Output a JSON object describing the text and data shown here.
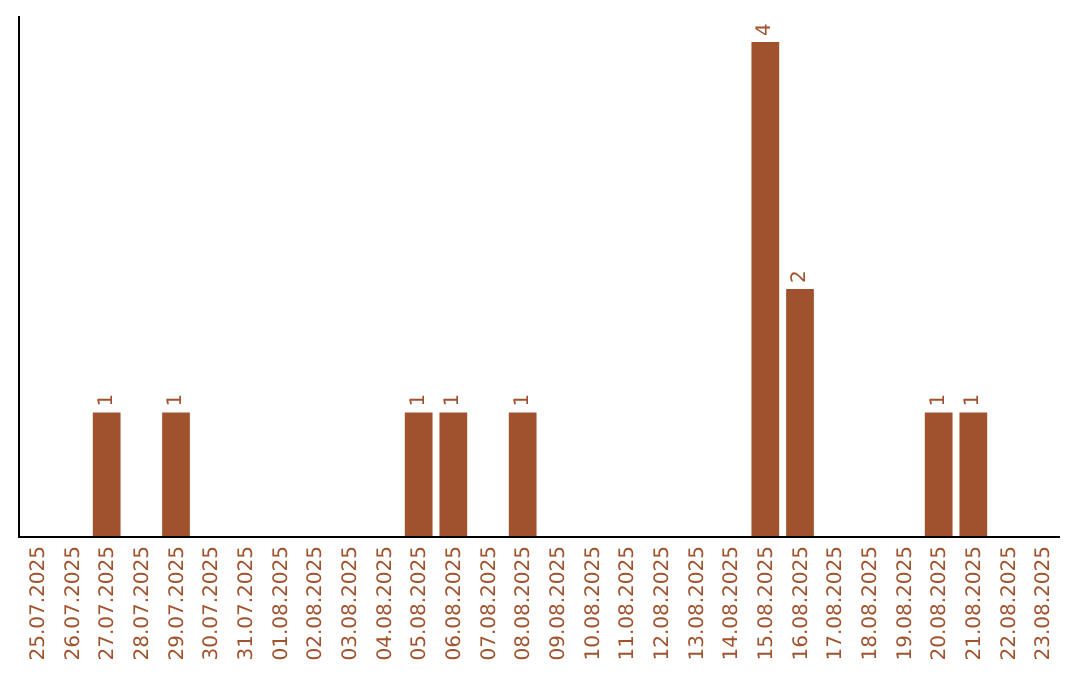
{
  "chart_data": {
    "type": "bar",
    "categories": [
      "25.07.2025",
      "26.07.2025",
      "27.07.2025",
      "28.07.2025",
      "29.07.2025",
      "30.07.2025",
      "31.07.2025",
      "01.08.2025",
      "02.08.2025",
      "03.08.2025",
      "04.08.2025",
      "05.08.2025",
      "06.08.2025",
      "07.08.2025",
      "08.08.2025",
      "09.08.2025",
      "10.08.2025",
      "11.08.2025",
      "12.08.2025",
      "13.08.2025",
      "14.08.2025",
      "15.08.2025",
      "16.08.2025",
      "17.08.2025",
      "18.08.2025",
      "19.08.2025",
      "20.08.2025",
      "21.08.2025",
      "22.08.2025",
      "23.08.2025"
    ],
    "values": [
      0,
      0,
      1,
      0,
      1,
      0,
      0,
      0,
      0,
      0,
      0,
      1,
      1,
      0,
      1,
      0,
      0,
      0,
      0,
      0,
      0,
      4,
      2,
      0,
      0,
      0,
      1,
      1,
      0,
      0
    ],
    "value_labels": [
      null,
      null,
      "1",
      null,
      "1",
      null,
      null,
      null,
      null,
      null,
      null,
      "1",
      "1",
      null,
      "1",
      null,
      null,
      null,
      null,
      null,
      null,
      "4",
      "2",
      null,
      null,
      null,
      "1",
      "1",
      null,
      null
    ],
    "color": "#a0522d",
    "grid": false,
    "legend": false
  }
}
